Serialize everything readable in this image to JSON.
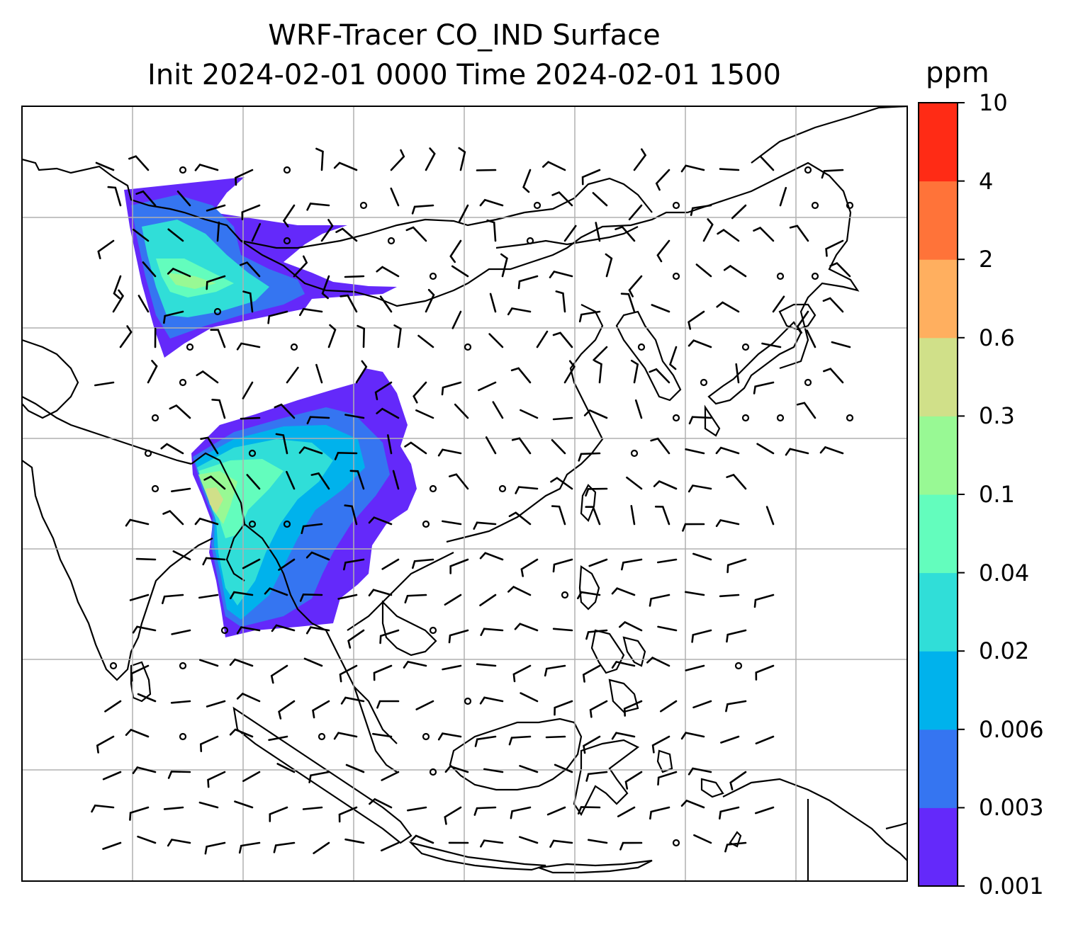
{
  "title": {
    "line1": "WRF-Tracer CO_IND Surface",
    "line2": "Init 2024-02-01 0000 Time 2024-02-01 1500"
  },
  "colorbar": {
    "unit": "ppm",
    "levels": [
      "0.001",
      "0.003",
      "0.006",
      "0.02",
      "0.04",
      "0.1",
      "0.3",
      "0.6",
      "2",
      "4",
      "10"
    ],
    "colors": [
      "#6429fa",
      "#3575f1",
      "#00b2ec",
      "#30ded8",
      "#63fdbd",
      "#98f994",
      "#d0e089",
      "#ffaf5f",
      "#ff7339",
      "#ff2b15"
    ]
  },
  "map": {
    "gridlines": true,
    "overlays": [
      "coastlines",
      "wind-barbs",
      "tracer-concentration-contours"
    ]
  }
}
